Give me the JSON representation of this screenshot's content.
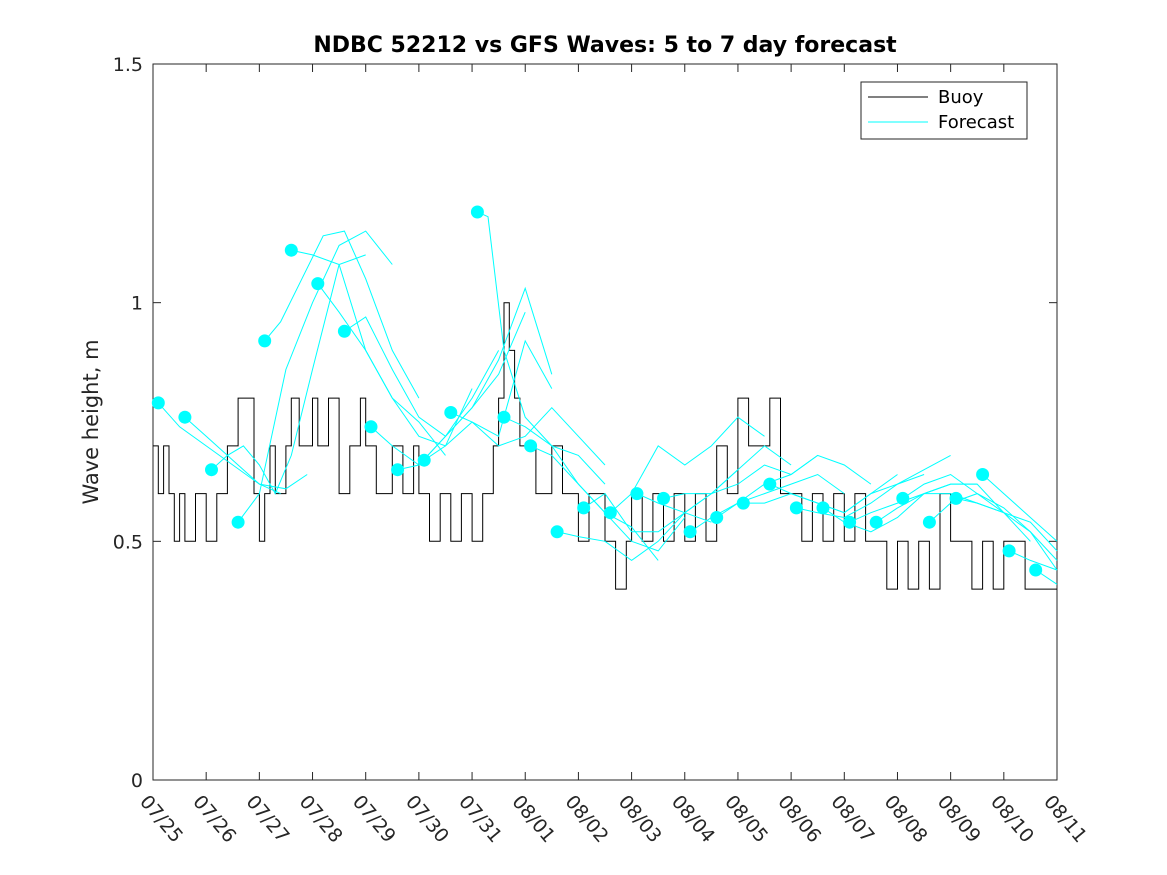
{
  "chart_data": {
    "type": "line",
    "title": "NDBC 52212 vs GFS Waves: 5 to 7 day forecast",
    "xlabel": "",
    "ylabel": "Wave height, m",
    "ylim": [
      0,
      1.5
    ],
    "yticks": [
      "0",
      "0.5",
      "1",
      "1.5"
    ],
    "xlim": [
      0,
      17
    ],
    "categories": [
      "07/25",
      "07/26",
      "07/27",
      "07/28",
      "07/29",
      "07/30",
      "07/31",
      "08/01",
      "08/02",
      "08/03",
      "08/04",
      "08/05",
      "08/06",
      "08/07",
      "08/08",
      "08/09",
      "08/10",
      "08/11"
    ],
    "grid": false,
    "legend": {
      "placement": "top-right",
      "entries": [
        "Buoy",
        "Forecast"
      ]
    },
    "colors": {
      "buoy": "#000000",
      "forecast": "#00ffff"
    },
    "buoy": {
      "name": "Buoy",
      "x": [
        0,
        0.1,
        0.2,
        0.3,
        0.4,
        0.5,
        0.6,
        0.8,
        1.0,
        1.2,
        1.4,
        1.6,
        1.9,
        2.0,
        2.1,
        2.2,
        2.3,
        2.5,
        2.6,
        2.75,
        2.9,
        3.0,
        3.1,
        3.3,
        3.5,
        3.7,
        3.9,
        4.0,
        4.2,
        4.5,
        4.7,
        4.9,
        5.0,
        5.2,
        5.4,
        5.6,
        5.8,
        6.0,
        6.2,
        6.4,
        6.5,
        6.6,
        6.7,
        6.8,
        6.9,
        7.0,
        7.2,
        7.5,
        7.7,
        7.9,
        8.0,
        8.2,
        8.5,
        8.7,
        8.9,
        9.0,
        9.2,
        9.4,
        9.6,
        9.8,
        10.0,
        10.2,
        10.4,
        10.6,
        10.8,
        11.0,
        11.2,
        11.4,
        11.6,
        11.8,
        12.0,
        12.2,
        12.4,
        12.6,
        12.8,
        13.0,
        13.2,
        13.4,
        13.6,
        13.8,
        14.0,
        14.2,
        14.4,
        14.6,
        14.8,
        15.0,
        15.2,
        15.4,
        15.6,
        15.8,
        16.0,
        16.2,
        16.4,
        16.6,
        16.8,
        17.0
      ],
      "y": [
        0.7,
        0.6,
        0.7,
        0.6,
        0.5,
        0.6,
        0.5,
        0.6,
        0.5,
        0.6,
        0.7,
        0.8,
        0.6,
        0.5,
        0.6,
        0.7,
        0.6,
        0.7,
        0.8,
        0.7,
        0.7,
        0.8,
        0.7,
        0.8,
        0.6,
        0.7,
        0.8,
        0.7,
        0.6,
        0.7,
        0.6,
        0.7,
        0.6,
        0.5,
        0.6,
        0.5,
        0.6,
        0.5,
        0.6,
        0.7,
        0.8,
        1.0,
        0.9,
        0.8,
        0.7,
        0.7,
        0.6,
        0.7,
        0.6,
        0.6,
        0.5,
        0.6,
        0.5,
        0.4,
        0.5,
        0.6,
        0.5,
        0.6,
        0.5,
        0.6,
        0.5,
        0.6,
        0.5,
        0.7,
        0.6,
        0.8,
        0.7,
        0.7,
        0.8,
        0.6,
        0.6,
        0.5,
        0.6,
        0.5,
        0.6,
        0.5,
        0.6,
        0.5,
        0.5,
        0.4,
        0.5,
        0.4,
        0.5,
        0.4,
        0.6,
        0.5,
        0.5,
        0.4,
        0.5,
        0.4,
        0.5,
        0.5,
        0.4,
        0.4,
        0.4,
        0.4
      ]
    },
    "forecast_series": [
      {
        "x": [
          0.1,
          0.5,
          1.0,
          1.5,
          2.0,
          2.4
        ],
        "y": [
          0.79,
          0.74,
          0.7,
          0.66,
          0.62,
          0.6
        ]
      },
      {
        "x": [
          0.6,
          1.0,
          1.5,
          2.0,
          2.5,
          2.9
        ],
        "y": [
          0.76,
          0.72,
          0.67,
          0.62,
          0.61,
          0.64
        ]
      },
      {
        "x": [
          1.1,
          1.4,
          1.7,
          2.0,
          2.3,
          2.6,
          3.0,
          3.5,
          4.0
        ],
        "y": [
          0.65,
          0.68,
          0.7,
          0.66,
          0.6,
          0.68,
          0.86,
          1.08,
          1.1
        ]
      },
      {
        "x": [
          1.6,
          2.0,
          2.5,
          3.0,
          3.5,
          4.0,
          4.5
        ],
        "y": [
          0.54,
          0.6,
          0.86,
          1.0,
          1.12,
          1.15,
          1.08
        ]
      },
      {
        "x": [
          2.1,
          2.4,
          2.8,
          3.2,
          3.6,
          4.0,
          4.5,
          5.0
        ],
        "y": [
          0.92,
          0.96,
          1.05,
          1.14,
          1.15,
          1.05,
          0.9,
          0.8
        ]
      },
      {
        "x": [
          2.6,
          3.0,
          3.5,
          4.0,
          4.5,
          5.0,
          5.5
        ],
        "y": [
          1.11,
          1.1,
          1.08,
          0.9,
          0.8,
          0.75,
          0.68
        ]
      },
      {
        "x": [
          3.1,
          3.5,
          4.0,
          4.5,
          5.0,
          5.5,
          6.0
        ],
        "y": [
          1.04,
          0.98,
          0.9,
          0.8,
          0.72,
          0.7,
          0.82
        ]
      },
      {
        "x": [
          3.6,
          4.0,
          4.5,
          5.0,
          5.5,
          6.0,
          6.5
        ],
        "y": [
          0.94,
          0.97,
          0.86,
          0.76,
          0.72,
          0.8,
          0.9
        ]
      },
      {
        "x": [
          4.1,
          4.5,
          5.0,
          5.5,
          6.0,
          6.5,
          7.0
        ],
        "y": [
          0.74,
          0.7,
          0.66,
          0.72,
          0.78,
          0.85,
          0.98
        ]
      },
      {
        "x": [
          4.6,
          5.0,
          5.5,
          6.0,
          6.5,
          7.0,
          7.5
        ],
        "y": [
          0.65,
          0.66,
          0.72,
          0.78,
          0.88,
          1.03,
          0.85
        ]
      },
      {
        "x": [
          5.1,
          5.5,
          6.0,
          6.5,
          7.0,
          7.5
        ],
        "y": [
          0.67,
          0.7,
          0.75,
          0.72,
          0.92,
          0.82
        ]
      },
      {
        "x": [
          5.6,
          6.0,
          6.5,
          7.0,
          7.5,
          8.0,
          8.5
        ],
        "y": [
          0.77,
          0.75,
          0.7,
          0.72,
          0.78,
          0.72,
          0.66
        ]
      },
      {
        "x": [
          6.1,
          6.3,
          6.6,
          7.0,
          7.5,
          8.0,
          8.5
        ],
        "y": [
          1.19,
          1.18,
          0.9,
          0.76,
          0.7,
          0.68,
          0.62
        ]
      },
      {
        "x": [
          6.6,
          7.0,
          7.5,
          8.0,
          8.5,
          9.0,
          9.5
        ],
        "y": [
          0.76,
          0.74,
          0.7,
          0.62,
          0.56,
          0.53,
          0.46
        ]
      },
      {
        "x": [
          7.1,
          7.5,
          8.0,
          8.5,
          9.0,
          9.5,
          10.0
        ],
        "y": [
          0.7,
          0.68,
          0.62,
          0.56,
          0.5,
          0.48,
          0.55
        ]
      },
      {
        "x": [
          7.6,
          8.0,
          8.5,
          9.0,
          9.5,
          10.0,
          10.5
        ],
        "y": [
          0.52,
          0.51,
          0.5,
          0.46,
          0.5,
          0.56,
          0.54
        ]
      },
      {
        "x": [
          8.1,
          8.5,
          9.0,
          9.5,
          10.0,
          10.5,
          11.0
        ],
        "y": [
          0.57,
          0.6,
          0.52,
          0.52,
          0.56,
          0.6,
          0.65
        ]
      },
      {
        "x": [
          8.6,
          9.0,
          9.5,
          10.0,
          10.5,
          11.0,
          11.5
        ],
        "y": [
          0.56,
          0.6,
          0.7,
          0.66,
          0.7,
          0.76,
          0.72
        ]
      },
      {
        "x": [
          9.1,
          9.5,
          10.0,
          10.5,
          11.0,
          11.5,
          12.0
        ],
        "y": [
          0.6,
          0.58,
          0.56,
          0.6,
          0.65,
          0.7,
          0.66
        ]
      },
      {
        "x": [
          9.6,
          10.0,
          10.5,
          11.0,
          11.5,
          12.0,
          12.5
        ],
        "y": [
          0.59,
          0.6,
          0.6,
          0.62,
          0.66,
          0.64,
          0.68
        ]
      },
      {
        "x": [
          10.1,
          10.5,
          11.0,
          11.5,
          12.0,
          12.5,
          13.0
        ],
        "y": [
          0.52,
          0.55,
          0.58,
          0.6,
          0.62,
          0.64,
          0.6
        ]
      },
      {
        "x": [
          10.6,
          11.0,
          11.5,
          12.0,
          12.5,
          13.0,
          13.5
        ],
        "y": [
          0.55,
          0.58,
          0.62,
          0.64,
          0.68,
          0.66,
          0.62
        ]
      },
      {
        "x": [
          11.1,
          11.5,
          12.0,
          12.5,
          13.0,
          13.5,
          14.0
        ],
        "y": [
          0.58,
          0.58,
          0.6,
          0.58,
          0.56,
          0.6,
          0.64
        ]
      },
      {
        "x": [
          11.6,
          12.0,
          12.5,
          13.0,
          13.5,
          14.0,
          14.5
        ],
        "y": [
          0.62,
          0.6,
          0.58,
          0.56,
          0.6,
          0.62,
          0.64
        ]
      },
      {
        "x": [
          12.1,
          12.5,
          13.0,
          13.5,
          14.0,
          14.5,
          15.0
        ],
        "y": [
          0.57,
          0.56,
          0.55,
          0.58,
          0.62,
          0.65,
          0.68
        ]
      },
      {
        "x": [
          12.6,
          13.0,
          13.5,
          14.0,
          14.5,
          15.0,
          15.5
        ],
        "y": [
          0.57,
          0.54,
          0.52,
          0.55,
          0.6,
          0.62,
          0.62
        ]
      },
      {
        "x": [
          13.1,
          13.5,
          14.0,
          14.5,
          15.0,
          15.5,
          16.0
        ],
        "y": [
          0.54,
          0.56,
          0.58,
          0.6,
          0.62,
          0.62,
          0.56
        ]
      },
      {
        "x": [
          13.6,
          14.0,
          14.5,
          15.0,
          15.5,
          16.0,
          16.5
        ],
        "y": [
          0.54,
          0.57,
          0.6,
          0.6,
          0.58,
          0.56,
          0.5
        ]
      },
      {
        "x": [
          14.1,
          14.5,
          15.0,
          15.5,
          16.0,
          16.5,
          17.0
        ],
        "y": [
          0.59,
          0.62,
          0.64,
          0.6,
          0.56,
          0.52,
          0.46
        ]
      },
      {
        "x": [
          14.6,
          15.0,
          15.5,
          16.0,
          16.5,
          17.0
        ],
        "y": [
          0.54,
          0.58,
          0.6,
          0.57,
          0.52,
          0.44
        ]
      },
      {
        "x": [
          15.1,
          15.5,
          16.0,
          16.5,
          17.0
        ],
        "y": [
          0.59,
          0.58,
          0.56,
          0.54,
          0.48
        ]
      },
      {
        "x": [
          15.6,
          16.0,
          16.5,
          17.0
        ],
        "y": [
          0.64,
          0.6,
          0.55,
          0.5
        ]
      },
      {
        "x": [
          16.1,
          16.5,
          17.0
        ],
        "y": [
          0.48,
          0.46,
          0.44
        ]
      },
      {
        "x": [
          16.6,
          17.0
        ],
        "y": [
          0.44,
          0.41
        ]
      }
    ]
  }
}
